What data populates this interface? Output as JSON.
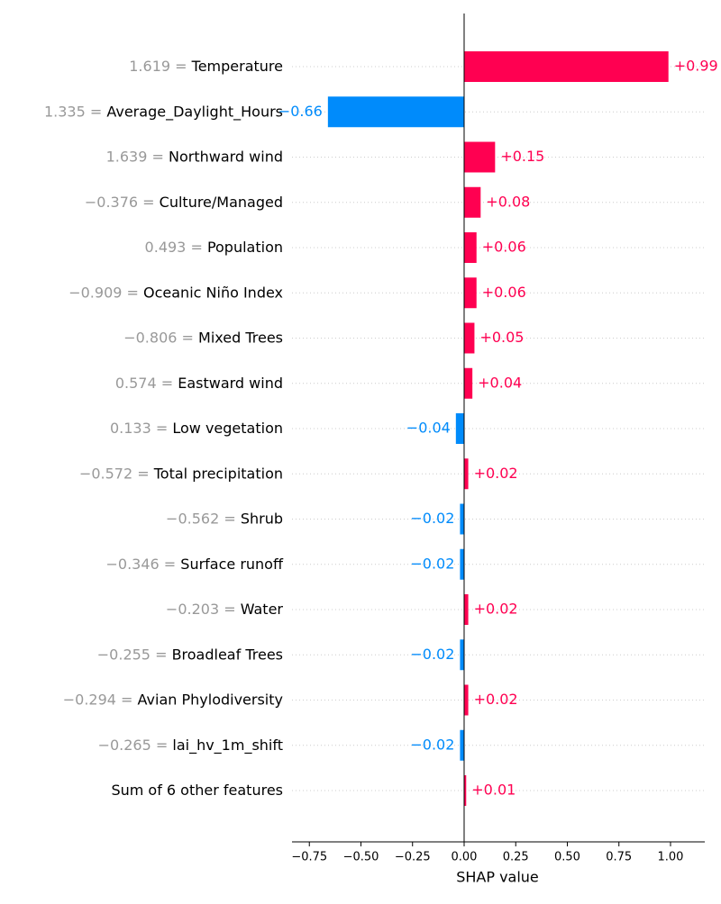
{
  "chart_data": {
    "type": "bar",
    "orientation": "horizontal",
    "x_label": "SHAP value",
    "categories": [
      "Temperature",
      "Average_Daylight_Hours",
      "Northward wind",
      "Culture/Managed",
      "Population",
      "Oceanic Niño Index",
      "Mixed Trees",
      "Eastward wind",
      "Low vegetation",
      "Total precipitation",
      "Shrub",
      "Surface runoff",
      "Water",
      "Broadleaf Trees",
      "Avian Phylodiversity",
      "lai_hv_1m_shift",
      "Sum of 6 other features"
    ],
    "feature_values": [
      "1.619 = ",
      "1.335 = ",
      "1.639 = ",
      "−0.376 = ",
      "0.493 = ",
      "−0.909 = ",
      "−0.806 = ",
      "0.574 = ",
      "0.133 = ",
      "−0.572 = ",
      "−0.562 = ",
      "−0.346 = ",
      "−0.203 = ",
      "−0.255 = ",
      "−0.294 = ",
      "−0.265 = ",
      null
    ],
    "values": [
      0.99,
      -0.66,
      0.15,
      0.08,
      0.06,
      0.06,
      0.05,
      0.04,
      -0.04,
      0.02,
      -0.02,
      -0.02,
      0.02,
      -0.02,
      0.02,
      -0.02,
      0.01
    ],
    "value_labels": [
      "+0.99",
      "−0.66",
      "+0.15",
      "+0.08",
      "+0.06",
      "+0.06",
      "+0.05",
      "+0.04",
      "−0.04",
      "+0.02",
      "−0.02",
      "−0.02",
      "+0.02",
      "−0.02",
      "+0.02",
      "−0.02",
      "+0.01"
    ],
    "positive_color": "#ff0051",
    "negative_color": "#008bfb",
    "xlim": [
      -0.834,
      1.166
    ],
    "xticks": [
      {
        "value": -0.75,
        "label": "−0.75"
      },
      {
        "value": -0.5,
        "label": "−0.50"
      },
      {
        "value": -0.25,
        "label": "−0.25"
      },
      {
        "value": 0,
        "label": "0.00"
      },
      {
        "value": 0.25,
        "label": "0.25"
      },
      {
        "value": 0.5,
        "label": "0.50"
      },
      {
        "value": 0.75,
        "label": "0.75"
      },
      {
        "value": 1,
        "label": "1.00"
      }
    ],
    "grid": true
  }
}
